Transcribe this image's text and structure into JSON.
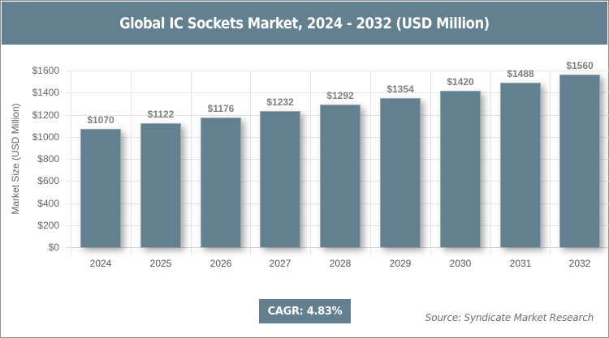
{
  "header": {
    "title": "Global IC Sockets Market, 2024 - 2032 (USD Million)"
  },
  "axis": {
    "ylabel": "Market Size (USD Million)",
    "yticks": [
      "$0",
      "$200",
      "$400",
      "$600",
      "$800",
      "$1000",
      "$1200",
      "$1400",
      "$1600"
    ]
  },
  "bars": [
    {
      "year": "2024",
      "label": "$1070",
      "value": 1070
    },
    {
      "year": "2025",
      "label": "$1122",
      "value": 1122
    },
    {
      "year": "2026",
      "label": "$1176",
      "value": 1176
    },
    {
      "year": "2027",
      "label": "$1232",
      "value": 1232
    },
    {
      "year": "2028",
      "label": "$1292",
      "value": 1292
    },
    {
      "year": "2029",
      "label": "$1354",
      "value": 1354
    },
    {
      "year": "2030",
      "label": "$1420",
      "value": 1420
    },
    {
      "year": "2031",
      "label": "$1488",
      "value": 1488
    },
    {
      "year": "2032",
      "label": "$1560",
      "value": 1560
    }
  ],
  "footer": {
    "cagr": "CAGR: 4.83%",
    "source": "Source: Syndicate Market Research"
  },
  "colors": {
    "bar": "#62808f",
    "header": "#62808f",
    "text": "#666666"
  },
  "chart_data": {
    "type": "bar",
    "title": "Global IC Sockets Market, 2024 - 2032 (USD Million)",
    "categories": [
      "2024",
      "2025",
      "2026",
      "2027",
      "2028",
      "2029",
      "2030",
      "2031",
      "2032"
    ],
    "values": [
      1070,
      1122,
      1176,
      1232,
      1292,
      1354,
      1420,
      1488,
      1560
    ],
    "xlabel": "",
    "ylabel": "Market Size (USD Million)",
    "ylim": [
      0,
      1600
    ],
    "yticks": [
      0,
      200,
      400,
      600,
      800,
      1000,
      1200,
      1400,
      1600
    ],
    "ytick_format": "$",
    "data_labels": true,
    "grid": true,
    "legend": null,
    "annotations": [
      "CAGR: 4.83%",
      "Source: Syndicate Market Research"
    ]
  }
}
